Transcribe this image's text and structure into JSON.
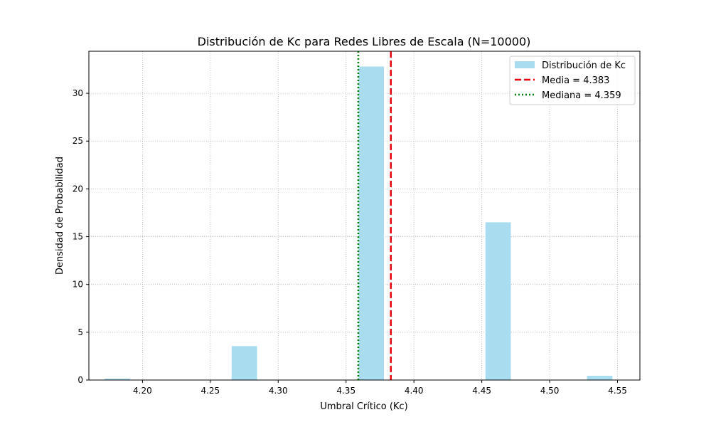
{
  "chart_data": {
    "type": "bar",
    "title": "Distribución de Kc para Redes Libres de Escala (N=10000)",
    "xlabel": "Umbral Crítico (Kc)",
    "ylabel": "Densidad de Probabilidad",
    "xlim": [
      4.1605,
      4.5665
    ],
    "ylim": [
      0,
      34.4
    ],
    "xticks": [
      4.2,
      4.25,
      4.3,
      4.35,
      4.4,
      4.45,
      4.5,
      4.55
    ],
    "xtick_labels": [
      "4.20",
      "4.25",
      "4.30",
      "4.35",
      "4.40",
      "4.45",
      "4.50",
      "4.55"
    ],
    "yticks": [
      0,
      5,
      10,
      15,
      20,
      25,
      30
    ],
    "ytick_labels": [
      "0",
      "5",
      "10",
      "15",
      "20",
      "25",
      "30"
    ],
    "grid": true,
    "legend_position": "top-right",
    "histogram": {
      "name": "Distribución de Kc",
      "color": "#a8dcee",
      "bins": [
        {
          "start": 4.1722,
          "end": 4.1909,
          "density": 0.15
        },
        {
          "start": 4.1909,
          "end": 4.2096,
          "density": 0
        },
        {
          "start": 4.2096,
          "end": 4.2283,
          "density": 0
        },
        {
          "start": 4.2283,
          "end": 4.247,
          "density": 0
        },
        {
          "start": 4.247,
          "end": 4.2657,
          "density": 0
        },
        {
          "start": 4.2657,
          "end": 4.2844,
          "density": 3.55
        },
        {
          "start": 4.2844,
          "end": 4.3031,
          "density": 0
        },
        {
          "start": 4.3031,
          "end": 4.3218,
          "density": 0
        },
        {
          "start": 4.3218,
          "end": 4.3405,
          "density": 0
        },
        {
          "start": 4.3405,
          "end": 4.3592,
          "density": 0
        },
        {
          "start": 4.3592,
          "end": 4.3779,
          "density": 32.8
        },
        {
          "start": 4.3779,
          "end": 4.3966,
          "density": 0
        },
        {
          "start": 4.3966,
          "end": 4.4153,
          "density": 0
        },
        {
          "start": 4.4153,
          "end": 4.434,
          "density": 0
        },
        {
          "start": 4.434,
          "end": 4.4527,
          "density": 0
        },
        {
          "start": 4.4527,
          "end": 4.4714,
          "density": 16.5
        },
        {
          "start": 4.4714,
          "end": 4.4901,
          "density": 0
        },
        {
          "start": 4.4901,
          "end": 4.5088,
          "density": 0
        },
        {
          "start": 4.5088,
          "end": 4.5275,
          "density": 0
        },
        {
          "start": 4.5275,
          "end": 4.5462,
          "density": 0.45
        }
      ]
    },
    "vlines": [
      {
        "name": "Media = 4.383",
        "x": 4.383,
        "color": "#e8000b",
        "style": "dashed"
      },
      {
        "name": "Mediana = 4.359",
        "x": 4.359,
        "color": "#008000",
        "style": "dotted"
      }
    ]
  }
}
